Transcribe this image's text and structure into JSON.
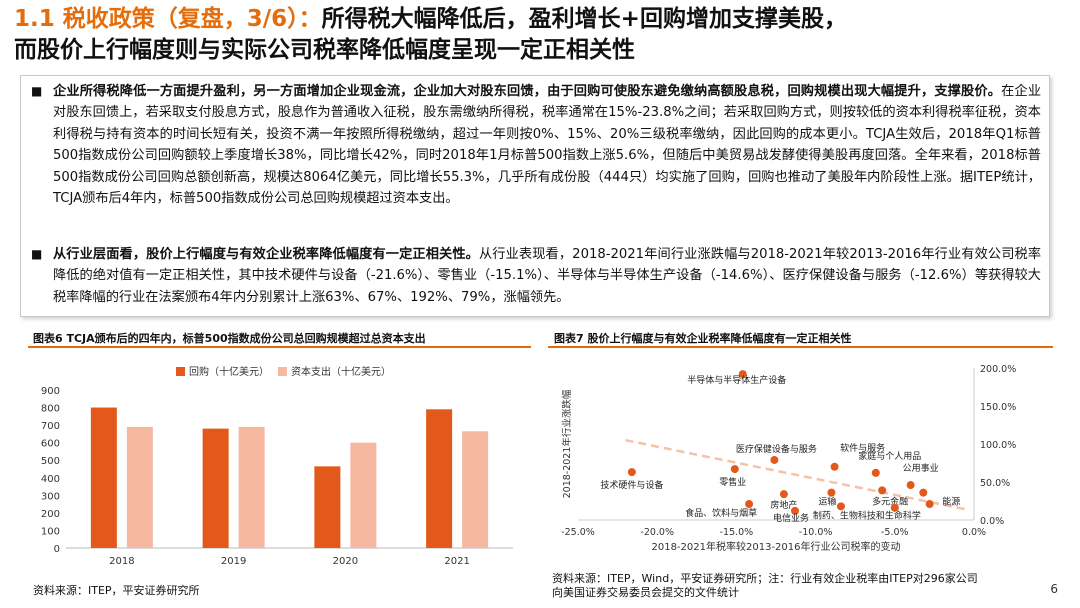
{
  "title": {
    "prefix": "1.1 税收政策（复盘，3/6）：",
    "line1_rest": "所得税大幅降低后，盈利增长+回购增加支撑美股，",
    "line2": "而股价上行幅度则与实际公司税率降低幅度呈现一定正相关性"
  },
  "paragraphs": [
    {
      "bullet": "■",
      "bold": "企业所得税降低一方面提升盈利，另一方面增加企业现金流，企业加大对股东回馈，由于回购可使股东避免缴纳高额股息税，回购规模出现大幅提升，支撑股价。",
      "text": "在企业对股东回馈上，若采取支付股息方式，股息作为普通收入征税，股东需缴纳所得税，税率通常在15%-23.8%之间；若采取回购方式，则按较低的资本利得税率征税，资本利得税与持有资本的时间长短有关，投资不满一年按照所得税缴纳，超过一年则按0%、15%、20%三级税率缴纳，因此回购的成本更小。TCJA生效后，2018年Q1标普500指数成份公司回购额较上季度增长38%，同比增长42%，同时2018年1月标普500指数上涨5.6%，但随后中美贸易战发酵使得美股再度回落。全年来看，2018标普500指数成份公司回购总额创新高，规模达8064亿美元，同比增长55.3%，几乎所有成份股（444只）均实施了回购，回购也推动了美股年内阶段性上涨。据ITEP统计，TCJA颁布后4年内，标普500指数成份公司总回购规模超过资本支出。"
    },
    {
      "bullet": "■",
      "bold": "从行业层面看，股价上行幅度与有效企业税率降低幅度有一定正相关性。",
      "text": "从行业表现看，2018-2021年间行业涨跌幅与2018-2021年较2013-2016年行业有效公司税率降低的绝对值有一定正相关性，其中技术硬件与设备（-21.6%）、零售业（-15.1%）、半导体与半导体生产设备（-14.6%）、医疗保健设备与服务（-12.6%）等获得较大税率降幅的行业在法案颁布4年内分别累计上涨63%、67%、192%、79%，涨幅领先。"
    }
  ],
  "figures": {
    "fig6": {
      "title": "图表6 TCJA颁布后的四年内，标普500指数成份公司总回购规模超过总资本支出",
      "source": "资料来源：ITEP，平安证券研究所"
    },
    "fig7": {
      "title": "图表7 股价上行幅度与有效企业税率降低幅度有一定正相关性",
      "source_line1": "资料来源：ITEP，Wind，平安证券研究所；注：行业有效企业税率由ITEP对296家公司",
      "source_line2": "向美国证券交易委员会提交的文件统计"
    }
  },
  "page_number": "6",
  "chart_data": [
    {
      "type": "bar",
      "categories": [
        "2018",
        "2019",
        "2020",
        "2021"
      ],
      "series": [
        {
          "name": "回购（十亿美元）",
          "values": [
            800,
            680,
            465,
            790
          ],
          "color": "#e2591b"
        },
        {
          "name": "资本支出（十亿美元）",
          "values": [
            690,
            690,
            600,
            665
          ],
          "color": "#f7b8a2"
        }
      ],
      "ylim": [
        0,
        900
      ],
      "yticks": [
        "0",
        "100",
        "200",
        "300",
        "400",
        "500",
        "600",
        "700",
        "800",
        "900"
      ],
      "legend": "top-center",
      "grid": false
    },
    {
      "type": "scatter",
      "xlabel": "2018-2021年税率较2013-2016年行业公司税率的变动",
      "ylabel": "2018-2021年行业涨跌幅",
      "xlim": [
        -0.25,
        0.0
      ],
      "ylim": [
        0.0,
        2.0
      ],
      "xticks": [
        "-25.0%",
        "-20.0%",
        "-15.0%",
        "-10.0%",
        "-5.0%",
        "0.0%"
      ],
      "yticks": [
        "0.0%",
        "50.0%",
        "100.0%",
        "150.0%",
        "200.0%"
      ],
      "color": "#e2591b",
      "trendline": {
        "x": [
          -0.22,
          -0.005
        ],
        "y": [
          1.05,
          0.14
        ],
        "color": "#f4c2a8",
        "style": "dashed"
      },
      "points": [
        {
          "label": "半导体与半导体生产设备",
          "x": -0.146,
          "y": 1.92
        },
        {
          "label": "技术硬件与设备",
          "x": -0.216,
          "y": 0.63
        },
        {
          "label": "零售业",
          "x": -0.151,
          "y": 0.67
        },
        {
          "label": "医疗保健设备与服务",
          "x": -0.126,
          "y": 0.79
        },
        {
          "label": "软件与服务",
          "x": -0.088,
          "y": 0.7
        },
        {
          "label": "家庭与个人用品",
          "x": -0.062,
          "y": 0.62
        },
        {
          "label": "公用事业",
          "x": -0.04,
          "y": 0.46
        },
        {
          "label": "房地产",
          "x": -0.12,
          "y": 0.34
        },
        {
          "label": "运输",
          "x": -0.09,
          "y": 0.36
        },
        {
          "label": "多元金融",
          "x": -0.058,
          "y": 0.39
        },
        {
          "label": "能源",
          "x": -0.032,
          "y": 0.36
        },
        {
          "label": "食品、饮料与烟草",
          "x": -0.142,
          "y": 0.21
        },
        {
          "label": "电信业务",
          "x": -0.113,
          "y": 0.12
        },
        {
          "label": "制药、生物科技和生命科学",
          "x": -0.084,
          "y": 0.18
        },
        {
          "label": "",
          "x": -0.05,
          "y": 0.16
        },
        {
          "label": "",
          "x": -0.028,
          "y": 0.21
        }
      ]
    }
  ]
}
